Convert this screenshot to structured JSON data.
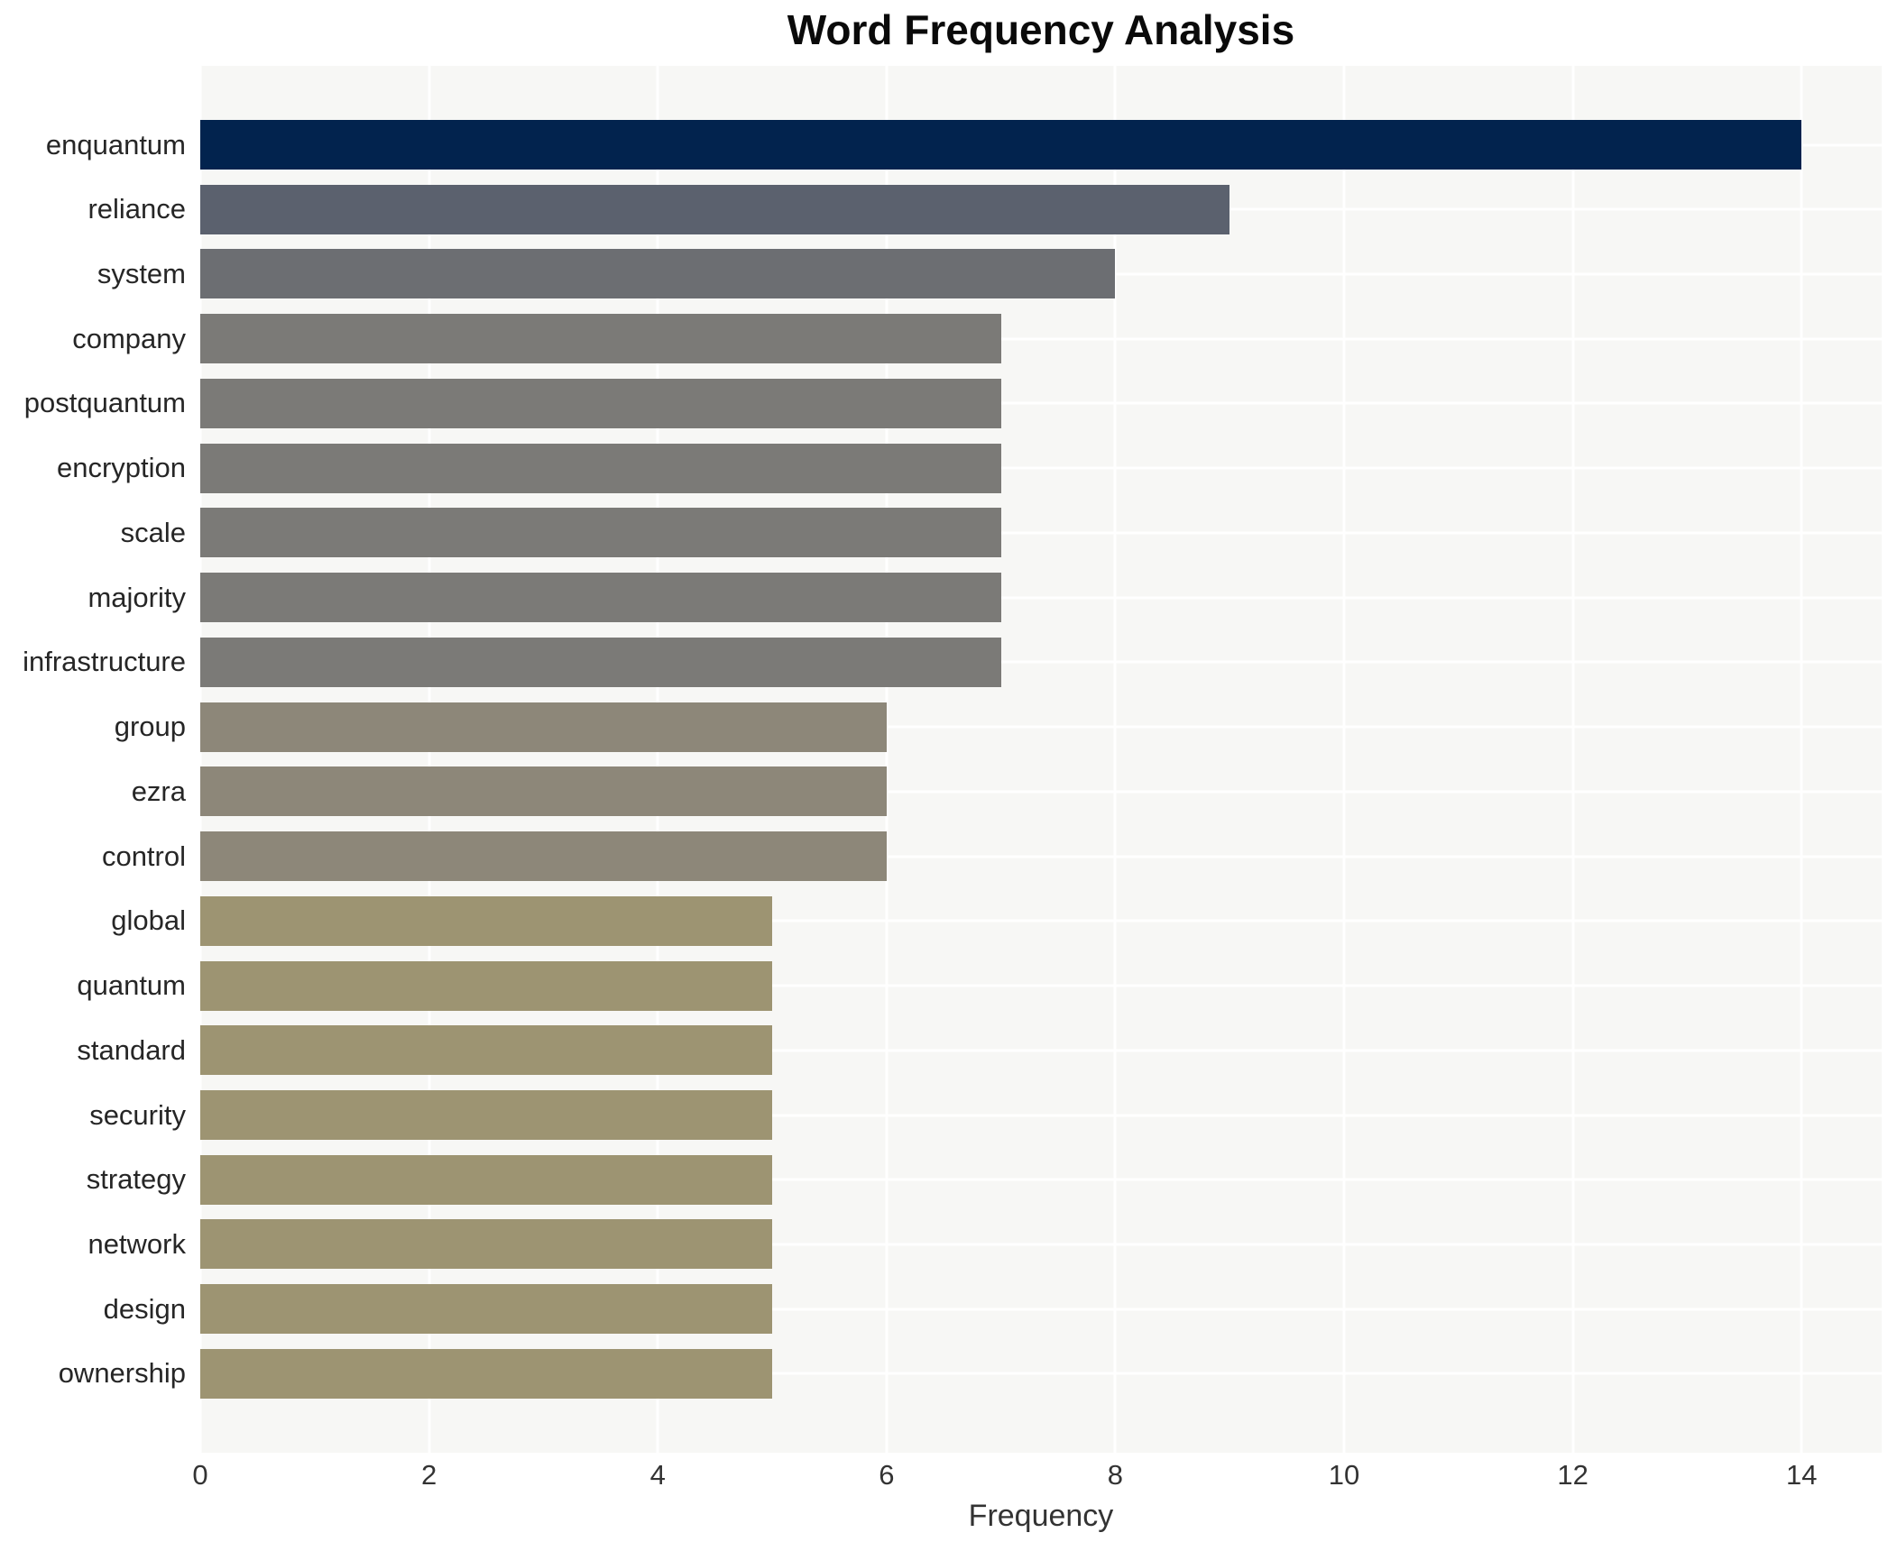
{
  "chart_data": {
    "type": "bar",
    "orientation": "horizontal",
    "title": "Word Frequency Analysis",
    "xlabel": "Frequency",
    "ylabel": "",
    "legend": false,
    "grid": true,
    "plot_background": "#f7f7f5",
    "gridline_color": "#ffffff",
    "xlim": [
      0,
      14.7
    ],
    "x_ticks": [
      0,
      2,
      4,
      6,
      8,
      10,
      12,
      14
    ],
    "categories": [
      "enquantum",
      "reliance",
      "system",
      "company",
      "postquantum",
      "encryption",
      "scale",
      "majority",
      "infrastructure",
      "group",
      "ezra",
      "control",
      "global",
      "quantum",
      "standard",
      "security",
      "strategy",
      "network",
      "design",
      "ownership"
    ],
    "values": [
      14,
      9,
      8,
      7,
      7,
      7,
      7,
      7,
      7,
      6,
      6,
      6,
      5,
      5,
      5,
      5,
      5,
      5,
      5,
      5
    ],
    "bar_colors": [
      "#02234e",
      "#5b616e",
      "#6c6e72",
      "#7b7a77",
      "#7b7a77",
      "#7b7a77",
      "#7b7a77",
      "#7b7a77",
      "#7b7a77",
      "#8d8779",
      "#8d8779",
      "#8d8779",
      "#9d9472",
      "#9d9472",
      "#9d9472",
      "#9d9472",
      "#9d9472",
      "#9d9472",
      "#9d9472",
      "#9d9472"
    ]
  }
}
